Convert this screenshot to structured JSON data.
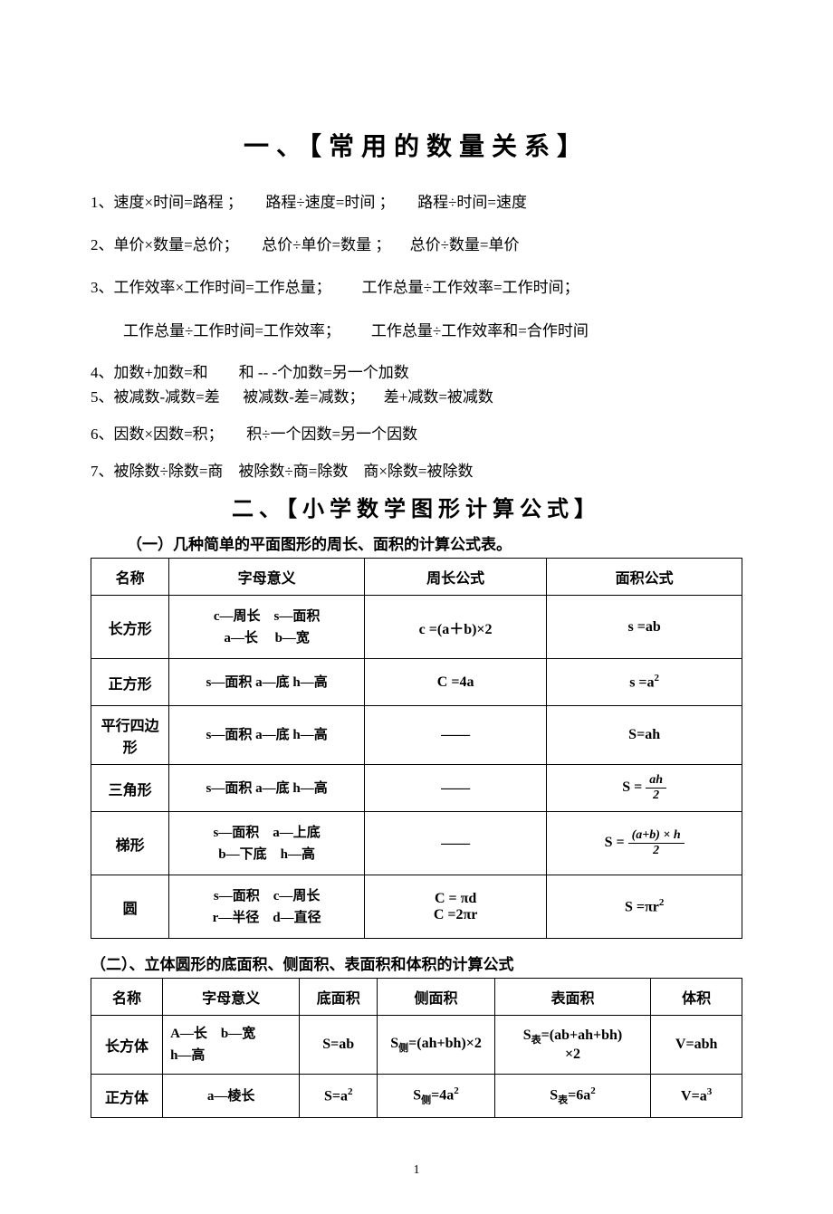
{
  "title": "一、【常用的数量关系】",
  "lines": {
    "l1": "1、速度×时间=路程 ；      路程÷速度=时间 ；      路程÷时间=速度",
    "l2": "2、单价×数量=总价；      总价÷单价=数量 ；     总价÷数量=单价",
    "l3": "3、工作效率×工作时间=工作总量；        工作总量÷工作效率=工作时间；",
    "l3b": "工作总量÷工作时间=工作效率；        工作总量÷工作效率和=合作时间",
    "l4": "4、加数+加数=和        和 -- -个加数=另一个加数",
    "l5": "5、被减数-减数=差      被减数-差=减数；     差+减数=被减数",
    "l6": "6、因数×因数=积；      积÷一个因数=另一个因数",
    "l7": "7、被除数÷除数=商    被除数÷商=除数    商×除数=被除数"
  },
  "subtitle": "二、【小学数学图形计算公式】",
  "section1_label": "（一）几种简单的平面图形的周长、面积的计算公式表。",
  "t1": {
    "headers": [
      "名称",
      "字母意义",
      "周长公式",
      "面积公式"
    ],
    "rows": [
      {
        "name": "长方形",
        "letters": "c—周长    s—面积\na—长     b—宽",
        "perim": "c =(a＋b)×2",
        "area": "s =ab"
      },
      {
        "name": "正方形",
        "letters": "s—面积 a—底 h—高",
        "perim": "C =4a",
        "area_html": "s =a<sup>2</sup>"
      },
      {
        "name": "平行四边形",
        "letters": "s—面积 a—底 h—高",
        "perim": "——",
        "area": "S=ah"
      },
      {
        "name": "三角形",
        "letters": "s—面积 a—底 h—高",
        "perim": "——",
        "area_frac": {
          "prefix": "S = ",
          "num": "ah",
          "den": "2"
        }
      },
      {
        "name": "梯形",
        "letters": "s—面积    a—上底\nb—下底    h—高",
        "perim": "——",
        "area_frac": {
          "prefix": "S = ",
          "num": "(a+b) × h",
          "den": "2"
        }
      },
      {
        "name": "圆",
        "letters": "s—面积    c—周长\nr—半径    d—直径",
        "perim_multi": "C = πd\nC =2πr",
        "area_html": "S =πr<sup>2</sup>"
      }
    ]
  },
  "section2_label": "（二）、立体圆形的底面积、侧面积、表面积和体积的计算公式",
  "t2": {
    "headers": [
      "名称",
      "字母意义",
      "底面积",
      "侧面积",
      "表面积",
      "体积"
    ],
    "rows": [
      {
        "name": "长方体",
        "letters": "A—长    b—宽\nh—高",
        "base": "S=ab",
        "side_html": "S<sub>侧</sub>=(ah+bh)×2",
        "surface_html": "S<sub>表</sub>=(ab+ah+bh)\n×2",
        "vol": "V=abh"
      },
      {
        "name": "正方体",
        "letters": "a—棱长",
        "base_html": "S=a<sup>2</sup>",
        "side_html": "S<sub>侧</sub>=4a<sup>2</sup>",
        "surface_html": "S<sub>表</sub>=6a<sup>2</sup>",
        "vol_html": "V=a<sup>3</sup>"
      }
    ]
  },
  "page_num": "1",
  "colors": {
    "text": "#000000",
    "background": "#ffffff",
    "border": "#000000"
  }
}
